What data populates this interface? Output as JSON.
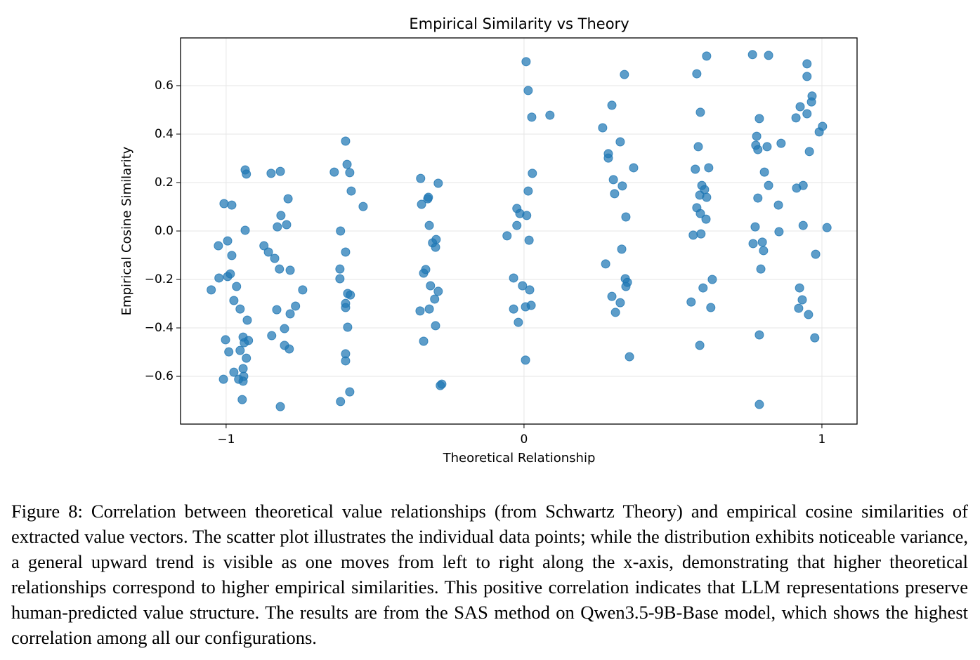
{
  "chart_data": {
    "type": "scatter",
    "title": "Empirical Similarity vs Theory",
    "xlabel": "Theoretical Relationship",
    "ylabel": "Empirical Cosine Similarity",
    "color": "#1f77b4",
    "grid": true,
    "xlim": [
      -1.153,
      1.118
    ],
    "ylim": [
      -0.797,
      0.797
    ],
    "xticks": [
      {
        "value": -1,
        "label": "−1"
      },
      0,
      1
    ],
    "yticks": [
      {
        "value": -0.6,
        "label": "−0.6"
      },
      {
        "value": -0.4,
        "label": "−0.4"
      },
      {
        "value": -0.2,
        "label": "−0.2"
      },
      {
        "value": 0,
        "label": "0.0"
      },
      0.2,
      0.4,
      0.6
    ],
    "x": [
      -1.007,
      -0.981,
      -0.936,
      -0.932,
      -0.936,
      -1.026,
      -0.995,
      -0.981,
      -1.024,
      -0.995,
      -0.986,
      -1.05,
      -0.965,
      -0.974,
      -0.953,
      -0.929,
      -0.943,
      -0.939,
      -0.925,
      -1.002,
      -0.953,
      -0.991,
      -0.932,
      -0.943,
      -0.974,
      -0.941,
      -0.958,
      -0.943,
      -1.009,
      -0.946,
      -0.849,
      -0.818,
      -0.792,
      -0.816,
      -0.828,
      -0.797,
      -0.873,
      -0.858,
      -0.837,
      -0.821,
      -0.785,
      -0.743,
      -0.767,
      -0.83,
      -0.785,
      -0.804,
      -0.847,
      -0.804,
      -0.788,
      -0.818,
      -0.599,
      -0.637,
      -0.594,
      -0.585,
      -0.58,
      -0.54,
      -0.616,
      -0.599,
      -0.618,
      -0.618,
      -0.592,
      -0.583,
      -0.599,
      -0.599,
      -0.592,
      -0.599,
      -0.599,
      -0.585,
      -0.616,
      -0.347,
      -0.288,
      -0.323,
      -0.321,
      -0.344,
      -0.318,
      -0.295,
      -0.307,
      -0.297,
      -0.33,
      -0.337,
      -0.314,
      -0.288,
      -0.3,
      -0.318,
      -0.349,
      -0.297,
      -0.337,
      -0.276,
      -0.281,
      0.007,
      0.014,
      0.026,
      0.087,
      0.028,
      0.014,
      -0.024,
      -0.014,
      0.009,
      -0.024,
      -0.057,
      0.017,
      -0.035,
      -0.005,
      0.019,
      -0.035,
      0.005,
      0.024,
      -0.019,
      0.005,
      0.337,
      0.295,
      0.264,
      0.323,
      0.283,
      0.283,
      0.368,
      0.3,
      0.33,
      0.304,
      0.342,
      0.328,
      0.274,
      0.34,
      0.347,
      0.342,
      0.295,
      0.323,
      0.307,
      0.354,
      0.613,
      0.58,
      0.592,
      0.585,
      0.575,
      0.62,
      0.597,
      0.606,
      0.59,
      0.613,
      0.58,
      0.592,
      0.611,
      0.568,
      0.594,
      0.632,
      0.601,
      0.561,
      0.627,
      0.59,
      0.767,
      0.821,
      0.79,
      0.781,
      0.778,
      0.785,
      0.816,
      0.863,
      0.807,
      0.821,
      0.785,
      0.854,
      0.776,
      0.856,
      0.769,
      0.8,
      0.804,
      0.795,
      0.79,
      0.79,
      0.95,
      0.95,
      0.967,
      0.965,
      0.927,
      0.95,
      0.913,
      1.002,
      0.991,
      0.958,
      0.937,
      0.915,
      0.937,
      1.017,
      0.979,
      0.925,
      0.934,
      0.922,
      0.955,
      0.976
    ],
    "y": [
      0.113,
      0.107,
      0.252,
      0.235,
      0.003,
      -0.061,
      -0.041,
      -0.101,
      -0.194,
      -0.188,
      -0.177,
      -0.243,
      -0.229,
      -0.287,
      -0.322,
      -0.368,
      -0.438,
      -0.461,
      -0.452,
      -0.449,
      -0.493,
      -0.499,
      -0.525,
      -0.568,
      -0.583,
      -0.6,
      -0.612,
      -0.62,
      -0.612,
      -0.696,
      0.238,
      0.246,
      0.133,
      0.064,
      0.017,
      0.026,
      -0.061,
      -0.087,
      -0.113,
      -0.157,
      -0.162,
      -0.243,
      -0.31,
      -0.325,
      -0.342,
      -0.403,
      -0.432,
      -0.472,
      -0.487,
      -0.725,
      0.371,
      0.243,
      0.275,
      0.241,
      0.165,
      0.101,
      0.0,
      -0.087,
      -0.157,
      -0.197,
      -0.258,
      -0.264,
      -0.299,
      -0.316,
      -0.397,
      -0.507,
      -0.536,
      -0.664,
      -0.704,
      0.217,
      0.197,
      0.133,
      0.139,
      0.11,
      0.023,
      -0.035,
      -0.049,
      -0.067,
      -0.159,
      -0.174,
      -0.226,
      -0.249,
      -0.281,
      -0.322,
      -0.33,
      -0.391,
      -0.455,
      -0.632,
      -0.638,
      0.699,
      0.58,
      0.47,
      0.478,
      0.238,
      0.165,
      0.093,
      0.072,
      0.064,
      0.023,
      -0.02,
      -0.038,
      -0.194,
      -0.226,
      -0.243,
      -0.322,
      -0.313,
      -0.307,
      -0.377,
      -0.533,
      0.646,
      0.519,
      0.426,
      0.368,
      0.319,
      0.301,
      0.261,
      0.212,
      0.186,
      0.154,
      0.058,
      -0.075,
      -0.136,
      -0.197,
      -0.212,
      -0.229,
      -0.27,
      -0.296,
      -0.336,
      -0.519,
      0.722,
      0.649,
      0.49,
      0.348,
      0.255,
      0.261,
      0.188,
      0.171,
      0.148,
      0.139,
      0.096,
      0.072,
      0.049,
      -0.017,
      -0.012,
      -0.2,
      -0.235,
      -0.293,
      -0.316,
      -0.472,
      0.728,
      0.725,
      0.464,
      0.391,
      0.354,
      0.336,
      0.348,
      0.362,
      0.243,
      0.188,
      0.136,
      0.107,
      0.017,
      -0.003,
      -0.052,
      -0.046,
      -0.081,
      -0.157,
      -0.429,
      -0.716,
      0.69,
      0.638,
      0.557,
      0.533,
      0.513,
      0.484,
      0.467,
      0.432,
      0.409,
      0.328,
      0.188,
      0.177,
      0.023,
      0.014,
      -0.096,
      -0.235,
      -0.284,
      -0.319,
      -0.345,
      -0.441
    ]
  },
  "caption": "Figure 8: Correlation between theoretical value relationships (from Schwartz Theory) and empirical cosine similarities of extracted value vectors. The scatter plot illustrates the individual data points; while the distribution exhibits noticeable variance, a general upward trend is visible as one moves from left to right along the x-axis, demonstrating that higher theoretical relationships correspond to higher empirical similarities.  This positive correlation indicates that LLM representations preserve human-predicted value structure. The results are from the SAS method on Qwen3.5-9B-Base model, which shows the highest correlation among all our configurations."
}
